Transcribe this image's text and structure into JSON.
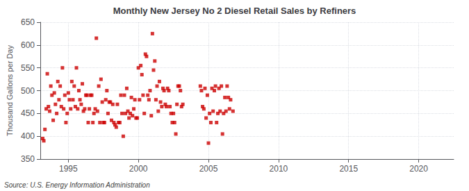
{
  "chart_data": {
    "type": "scatter",
    "title": "Monthly New Jersey No 2 Diesel Retail Sales by Refiners",
    "ylabel": "Thousand Gallons per Day",
    "annotations": [
      "Source: U.S. Energy Information Administration"
    ],
    "color": "#cc0000",
    "marker": "square",
    "xlim": [
      1993.0,
      2022.5
    ],
    "ylim": [
      350,
      650
    ],
    "xticks": [
      1995,
      2000,
      2005,
      2010,
      2015,
      2020
    ],
    "yticks": [
      350,
      400,
      450,
      500,
      550,
      600,
      650
    ],
    "grid": true,
    "x": [
      1993.17,
      1993.25,
      1993.33,
      1993.42,
      1993.5,
      1993.58,
      1993.67,
      1993.75,
      1993.83,
      1993.92,
      1994.0,
      1994.08,
      1994.17,
      1994.25,
      1994.33,
      1994.42,
      1994.5,
      1994.58,
      1994.67,
      1994.75,
      1994.83,
      1994.92,
      1995.0,
      1995.08,
      1995.17,
      1995.25,
      1995.33,
      1995.42,
      1995.5,
      1995.58,
      1995.67,
      1995.75,
      1995.83,
      1995.92,
      1996.0,
      1996.08,
      1996.17,
      1996.25,
      1996.33,
      1996.42,
      1996.5,
      1996.58,
      1996.67,
      1996.75,
      1996.83,
      1996.92,
      1997.0,
      1997.08,
      1997.17,
      1997.25,
      1997.33,
      1997.42,
      1997.5,
      1997.58,
      1997.67,
      1997.75,
      1997.83,
      1997.92,
      1998.0,
      1998.08,
      1998.17,
      1998.25,
      1998.33,
      1998.42,
      1998.5,
      1998.58,
      1998.67,
      1998.75,
      1998.83,
      1998.92,
      1999.0,
      1999.08,
      1999.17,
      1999.25,
      1999.33,
      1999.42,
      1999.5,
      1999.58,
      1999.67,
      1999.75,
      1999.83,
      1999.92,
      2000.0,
      2000.08,
      2000.17,
      2000.25,
      2000.33,
      2000.42,
      2000.5,
      2000.58,
      2000.67,
      2000.75,
      2000.83,
      2000.92,
      2001.0,
      2001.08,
      2001.17,
      2001.25,
      2001.33,
      2001.42,
      2001.5,
      2001.58,
      2001.67,
      2001.75,
      2001.83,
      2001.92,
      2002.0,
      2002.08,
      2002.17,
      2002.25,
      2002.33,
      2002.42,
      2002.5,
      2002.58,
      2002.67,
      2002.75,
      2002.83,
      2002.92,
      2003.0,
      2003.08,
      2003.17,
      2004.42,
      2004.5,
      2004.58,
      2004.67,
      2004.75,
      2004.83,
      2004.92,
      2005.0,
      2005.08,
      2005.17,
      2005.25,
      2005.33,
      2005.42,
      2005.5,
      2005.58,
      2005.67,
      2005.75,
      2005.83,
      2005.92,
      2006.0,
      2006.08,
      2006.17,
      2006.25,
      2006.33,
      2006.42,
      2006.5,
      2006.58,
      2006.75
    ],
    "values": [
      395,
      390,
      415,
      460,
      537,
      465,
      455,
      510,
      490,
      435,
      495,
      470,
      450,
      520,
      480,
      510,
      465,
      550,
      460,
      490,
      430,
      450,
      495,
      480,
      460,
      520,
      480,
      510,
      465,
      550,
      460,
      500,
      480,
      470,
      515,
      455,
      460,
      490,
      490,
      430,
      460,
      490,
      490,
      430,
      450,
      460,
      615,
      455,
      510,
      430,
      525,
      475,
      430,
      430,
      480,
      500,
      450,
      475,
      475,
      435,
      470,
      430,
      425,
      420,
      470,
      430,
      430,
      490,
      450,
      400,
      490,
      450,
      505,
      455,
      440,
      450,
      485,
      445,
      460,
      480,
      440,
      440,
      550,
      480,
      555,
      535,
      490,
      450,
      580,
      575,
      490,
      480,
      500,
      445,
      625,
      545,
      565,
      480,
      510,
      455,
      520,
      475,
      465,
      505,
      500,
      470,
      465,
      505,
      500,
      465,
      450,
      430,
      450,
      430,
      405,
      470,
      510,
      510,
      500,
      465,
      470,
      510,
      500,
      465,
      460,
      505,
      440,
      490,
      385,
      450,
      430,
      505,
      455,
      500,
      510,
      430,
      450,
      505,
      455,
      510,
      405,
      450,
      485,
      455,
      510,
      485,
      460,
      480,
      455
    ]
  }
}
